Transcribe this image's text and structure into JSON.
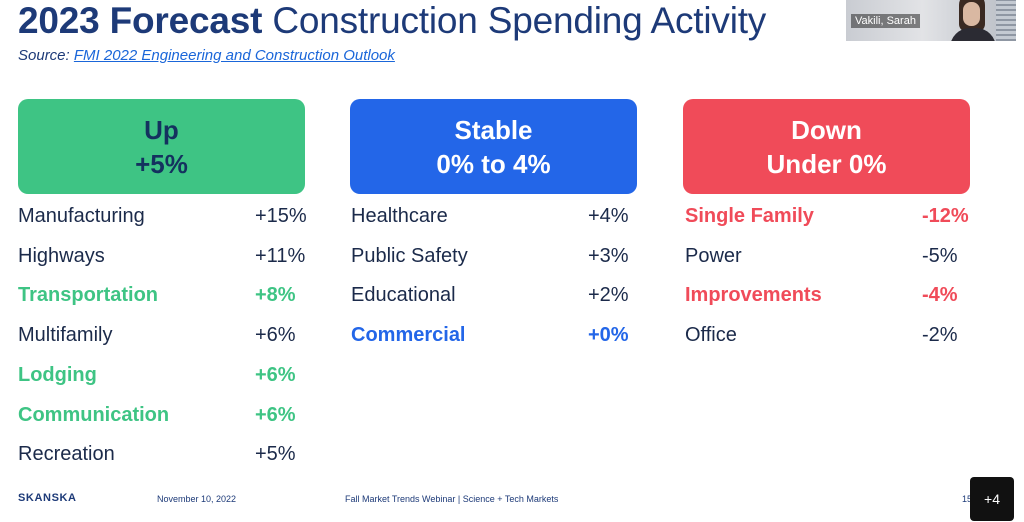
{
  "slide": {
    "title_bold": "2023 Forecast",
    "title_rest": "Construction Spending Activity",
    "source_label": "Source:",
    "source_link": "FMI 2022 Engineering and Construction Outlook"
  },
  "video": {
    "participant_name": "Vakili, Sarah"
  },
  "columns": {
    "up": {
      "line1": "Up",
      "line2": "+5%",
      "color": "#3ec484",
      "items": [
        {
          "name": "Manufacturing",
          "value": "+15%",
          "highlight": "none"
        },
        {
          "name": "Highways",
          "value": "+11%",
          "highlight": "none"
        },
        {
          "name": "Transportation",
          "value": "+8%",
          "highlight": "green"
        },
        {
          "name": "Multifamily",
          "value": "+6%",
          "highlight": "none"
        },
        {
          "name": "Lodging",
          "value": "+6%",
          "highlight": "green"
        },
        {
          "name": "Communication",
          "value": "+6%",
          "highlight": "green"
        },
        {
          "name": "Recreation",
          "value": "+5%",
          "highlight": "none"
        }
      ]
    },
    "stable": {
      "line1": "Stable",
      "line2": "0% to 4%",
      "color": "#2366e8",
      "items": [
        {
          "name": "Healthcare",
          "value": "+4%",
          "highlight": "none"
        },
        {
          "name": "Public Safety",
          "value": "+3%",
          "highlight": "none"
        },
        {
          "name": "Educational",
          "value": "+2%",
          "highlight": "none"
        },
        {
          "name": "Commercial",
          "value": "+0%",
          "highlight": "blue"
        }
      ]
    },
    "down": {
      "line1": "Down",
      "line2": "Under 0%",
      "color": "#f04b59",
      "items": [
        {
          "name": "Single Family",
          "value": "-12%",
          "highlight": "red"
        },
        {
          "name": "Power",
          "value": "-5%",
          "highlight": "none"
        },
        {
          "name": "Improvements",
          "value": "-4%",
          "highlight": "red"
        },
        {
          "name": "Office",
          "value": "-2%",
          "highlight": "none"
        }
      ]
    }
  },
  "footer": {
    "logo": "SKANSKA",
    "date": "November 10, 2022",
    "event": "Fall Market Trends Webinar | Science + Tech Markets",
    "page": "15"
  },
  "overflow_badge": "+4"
}
